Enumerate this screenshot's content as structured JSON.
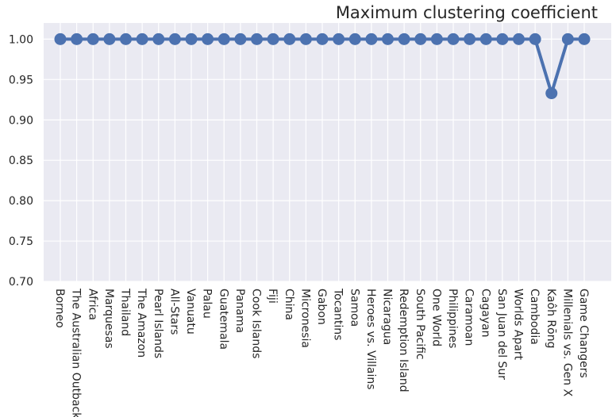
{
  "chart_data": {
    "type": "line",
    "title": "Maximum clustering coefficient",
    "xlabel": "",
    "ylabel": "",
    "ylim": [
      0.7,
      1.02
    ],
    "yticks": [
      "0.70",
      "0.75",
      "0.80",
      "0.85",
      "0.90",
      "0.95",
      "1.00"
    ],
    "grid": true,
    "legend": "none",
    "colors": {
      "line": "#4c72b0",
      "plot_bg": "#eaeaf2",
      "grid": "#ffffff"
    },
    "categories": [
      "Borneo",
      "The Australian Outback",
      "Africa",
      "Marquesas",
      "Thailand",
      "The Amazon",
      "Pearl Islands",
      "All-Stars",
      "Vanuatu",
      "Palau",
      "Guatemala",
      "Panama",
      "Cook Islands",
      "Fiji",
      "China",
      "Micronesia",
      "Gabon",
      "Tocantins",
      "Samoa",
      "Heroes vs. Villains",
      "Nicaragua",
      "Redemption Island",
      "South Pacific",
      "One World",
      "Philippines",
      "Caramoan",
      "Cagayan",
      "San Juan del Sur",
      "Worlds Apart",
      "Cambodia",
      "Kaôh Rōng",
      "Millenials vs. Gen X",
      "Game Changers"
    ],
    "values": [
      1.0,
      1.0,
      1.0,
      1.0,
      1.0,
      1.0,
      1.0,
      1.0,
      1.0,
      1.0,
      1.0,
      1.0,
      1.0,
      1.0,
      1.0,
      1.0,
      1.0,
      1.0,
      1.0,
      1.0,
      1.0,
      1.0,
      1.0,
      1.0,
      1.0,
      1.0,
      1.0,
      1.0,
      1.0,
      1.0,
      0.933,
      1.0,
      1.0
    ]
  }
}
